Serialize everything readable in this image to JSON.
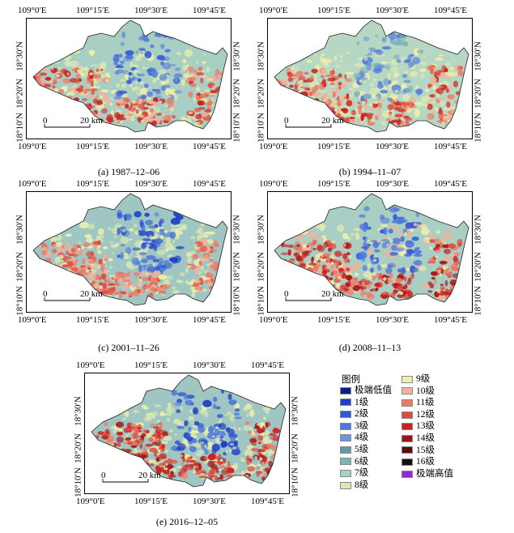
{
  "panels": [
    {
      "caption": "(a) 1987–12–06",
      "top_ticks": [
        "109°0′E",
        "109°15′E",
        "109°30′E",
        "109°45′E"
      ],
      "bottom_ticks": [
        "109°0′E",
        "109°15′E",
        "109°30′E",
        "109°45′E"
      ],
      "left_ticks": [
        "18°30′N",
        "18°20′N",
        "18°10′N"
      ],
      "right_ticks": [
        "18°30′N",
        "18°20′N",
        "18°10′N"
      ],
      "scale_zero": "0",
      "scale_label": "20 km"
    },
    {
      "caption": "(b) 1994–11–07",
      "top_ticks": [
        "109°0′E",
        "109°15′E",
        "109°30′E",
        "109°45′E"
      ],
      "bottom_ticks": [
        "109°0′E",
        "109°15′E",
        "109°30′E",
        "109°45′E"
      ],
      "left_ticks": [
        "18°30′N",
        "18°20′N",
        "18°10′N"
      ],
      "right_ticks": [
        "18°30′N",
        "18°20′N",
        "18°10′N"
      ],
      "scale_zero": "0",
      "scale_label": "20 km"
    },
    {
      "caption": "(c) 2001–11–26",
      "top_ticks": [
        "109°0′E",
        "109°15′E",
        "109°30′E",
        "109°45′E"
      ],
      "bottom_ticks": [
        "109°0′E",
        "109°15′E",
        "109°30′E",
        "109°45′E"
      ],
      "left_ticks": [
        "18°30′N",
        "18°20′N",
        "18°10′N"
      ],
      "right_ticks": [
        "18°30′N",
        "18°20′N",
        "18°10′N"
      ],
      "scale_zero": "0",
      "scale_label": "20 km"
    },
    {
      "caption": "(d) 2008–11–13",
      "top_ticks": [
        "109°0′E",
        "109°15′E",
        "109°30′E",
        "109°45′E"
      ],
      "bottom_ticks": [
        "109°0′E",
        "109°15′E",
        "109°30′E",
        "109°45′E"
      ],
      "left_ticks": [
        "18°30′N",
        "18°20′N",
        "18°10′N"
      ],
      "right_ticks": [
        "18°30′N",
        "18°20′N",
        "18°10′N"
      ],
      "scale_zero": "0",
      "scale_label": "20 km"
    },
    {
      "caption": "(e) 2016–12–05",
      "top_ticks": [
        "109°0′E",
        "109°15′E",
        "109°30′E",
        "109°45′E"
      ],
      "bottom_ticks": [
        "109°0′E",
        "109°15′E",
        "109°30′E",
        "109°45′E"
      ],
      "left_ticks": [
        "18°30′N",
        "18°20′N",
        "18°10′N"
      ],
      "right_ticks": [
        "18°30′N",
        "18°20′N",
        "18°10′N"
      ],
      "scale_zero": "0",
      "scale_label": "20 km"
    }
  ],
  "legend": {
    "title": "图例",
    "items": [
      {
        "label": "极端低值",
        "color": "#0a1f8a"
      },
      {
        "label": "1级",
        "color": "#1d3fc4"
      },
      {
        "label": "2级",
        "color": "#3158d6"
      },
      {
        "label": "3级",
        "color": "#4f78dd"
      },
      {
        "label": "4级",
        "color": "#6f95d8"
      },
      {
        "label": "5级",
        "color": "#5f9aa6"
      },
      {
        "label": "6级",
        "color": "#7eb4b8"
      },
      {
        "label": "7级",
        "color": "#a9cfc4"
      },
      {
        "label": "8级",
        "color": "#d6eab2"
      },
      {
        "label": "9级",
        "color": "#efeeaa"
      },
      {
        "label": "10级",
        "color": "#f3b29a"
      },
      {
        "label": "11级",
        "color": "#ee7a66"
      },
      {
        "label": "12级",
        "color": "#e04a3c"
      },
      {
        "label": "13级",
        "color": "#cc1f1f"
      },
      {
        "label": "14级",
        "color": "#a01414"
      },
      {
        "label": "15级",
        "color": "#5e0b0b"
      },
      {
        "label": "16级",
        "color": "#111111"
      },
      {
        "label": "极端高值",
        "color": "#9b22d6"
      }
    ]
  }
}
